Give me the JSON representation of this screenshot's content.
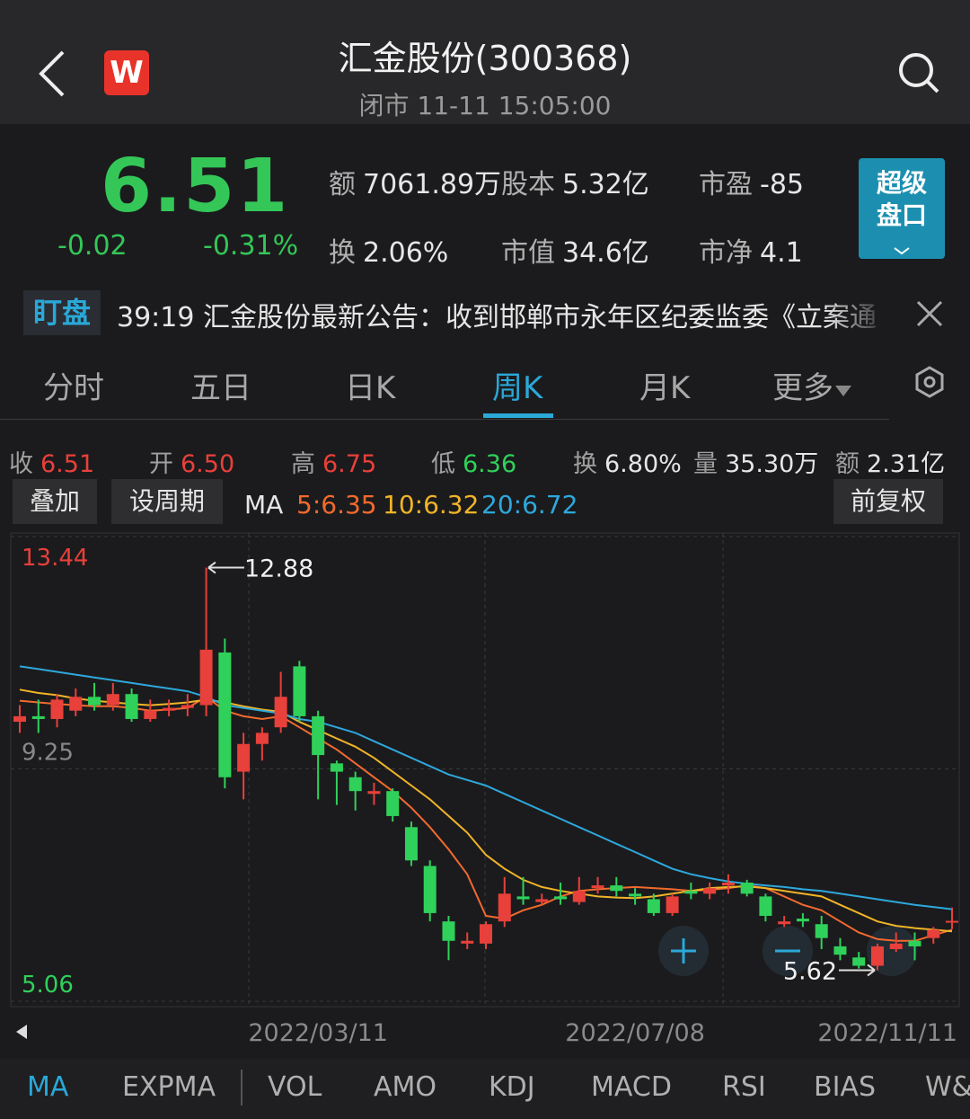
{
  "header": {
    "logo": "W",
    "title": "汇金股份(300368)",
    "subtitle": "闭市 11-11 15:05:00"
  },
  "quote": {
    "price": "6.51",
    "change": "-0.02",
    "change_pct": "-0.31%",
    "stats": [
      {
        "key": "额",
        "value": "7061.89万"
      },
      {
        "key": "股本",
        "value": "5.32亿"
      },
      {
        "key": "市盈",
        "value": "-85"
      },
      {
        "key": "换",
        "value": "2.06%"
      },
      {
        "key": "市值",
        "value": "34.6亿"
      },
      {
        "key": "市净",
        "value": "4.1"
      }
    ],
    "super_button": [
      "超级",
      "盘口"
    ]
  },
  "news": {
    "tag": "盯盘",
    "text": "39:19 汇金股份最新公告：收到邯郸市永年区纪委监委《立案通"
  },
  "period_tabs": [
    "分时",
    "五日",
    "日K",
    "周K",
    "月K",
    "更多"
  ],
  "bar_info": [
    {
      "key": "收",
      "value": "6.51"
    },
    {
      "key": "开",
      "value": "6.50"
    },
    {
      "key": "高",
      "value": "6.75"
    },
    {
      "key": "低",
      "value": "6.36"
    },
    {
      "key": "换",
      "value": "6.80%"
    },
    {
      "key": "量",
      "value": "35.30万"
    },
    {
      "key": "额",
      "value": "2.31亿"
    }
  ],
  "buttons": [
    "叠加",
    "设周期",
    "前复权"
  ],
  "kline": {
    "type": "candlestick",
    "indicator": "MA",
    "ylim": [
      5.06,
      13.44
    ],
    "yticks": [
      5.06,
      9.25,
      13.44
    ],
    "up_color": "#e8403a",
    "down_color": "#2fd15a",
    "categories": [
      null,
      null,
      null,
      null,
      null,
      null,
      null,
      null,
      null,
      null,
      null,
      null,
      null,
      null,
      null,
      null,
      "2022/03/11",
      null,
      null,
      null,
      null,
      null,
      null,
      null,
      null,
      null,
      null,
      null,
      null,
      null,
      null,
      null,
      null,
      "2022/07/08",
      null,
      null,
      null,
      null,
      null,
      null,
      null,
      null,
      null,
      null,
      null,
      null,
      null,
      null,
      null,
      null,
      "2022/11/11"
    ],
    "candles": [
      [
        10.1,
        10.2,
        10.4,
        9.9
      ],
      [
        10.2,
        10.15,
        10.5,
        9.9
      ],
      [
        10.15,
        10.5,
        10.6,
        10.0
      ],
      [
        10.3,
        10.55,
        10.7,
        10.2
      ],
      [
        10.55,
        10.4,
        10.8,
        10.3
      ],
      [
        10.4,
        10.6,
        10.8,
        10.3
      ],
      [
        10.6,
        10.15,
        10.7,
        10.1
      ],
      [
        10.15,
        10.3,
        10.5,
        10.1
      ],
      [
        10.3,
        10.35,
        10.5,
        10.2
      ],
      [
        10.35,
        10.4,
        10.6,
        10.2
      ],
      [
        10.4,
        11.4,
        12.88,
        10.2
      ],
      [
        11.35,
        9.1,
        11.6,
        8.9
      ],
      [
        9.2,
        9.7,
        9.9,
        8.7
      ],
      [
        9.7,
        9.9,
        10.0,
        9.4
      ],
      [
        10.0,
        10.55,
        11.0,
        9.9
      ],
      [
        11.1,
        10.2,
        11.2,
        10.1
      ],
      [
        10.2,
        9.5,
        10.3,
        8.7
      ],
      [
        9.35,
        9.2,
        9.4,
        8.6
      ],
      [
        9.1,
        8.85,
        9.2,
        8.5
      ],
      [
        8.8,
        8.85,
        9.0,
        8.6
      ],
      [
        8.85,
        8.4,
        8.9,
        8.3
      ],
      [
        8.2,
        7.6,
        8.3,
        7.5
      ],
      [
        7.5,
        6.65,
        7.6,
        6.5
      ],
      [
        6.5,
        6.15,
        6.6,
        5.8
      ],
      [
        6.1,
        6.15,
        6.3,
        6.0
      ],
      [
        6.1,
        6.45,
        6.5,
        6.0
      ],
      [
        6.5,
        7.0,
        7.3,
        6.4
      ],
      [
        6.95,
        6.9,
        7.3,
        6.8
      ],
      [
        6.85,
        6.9,
        7.0,
        6.8
      ],
      [
        6.95,
        6.9,
        7.2,
        6.8
      ],
      [
        6.85,
        7.05,
        7.3,
        6.8
      ],
      [
        7.1,
        7.15,
        7.3,
        7.0
      ],
      [
        7.15,
        7.05,
        7.3,
        6.95
      ],
      [
        7.0,
        6.95,
        7.1,
        6.8
      ],
      [
        6.9,
        6.65,
        7.0,
        6.6
      ],
      [
        6.65,
        6.95,
        7.0,
        6.6
      ],
      [
        7.05,
        7.0,
        7.2,
        6.9
      ],
      [
        7.0,
        7.1,
        7.2,
        6.9
      ],
      [
        7.15,
        7.2,
        7.35,
        7.0
      ],
      [
        7.2,
        7.0,
        7.25,
        6.95
      ],
      [
        6.95,
        6.6,
        7.0,
        6.5
      ],
      [
        6.45,
        6.5,
        6.6,
        6.4
      ],
      [
        6.55,
        6.5,
        6.65,
        6.4
      ],
      [
        6.45,
        6.2,
        6.6,
        6.0
      ],
      [
        6.05,
        5.9,
        6.2,
        5.8
      ],
      [
        5.85,
        5.7,
        5.95,
        5.65
      ],
      [
        5.7,
        6.05,
        6.1,
        5.62
      ],
      [
        6.0,
        6.1,
        6.3,
        5.95
      ],
      [
        6.15,
        6.05,
        6.3,
        5.8
      ],
      [
        6.2,
        6.35,
        6.4,
        6.1
      ],
      [
        6.5,
        6.51,
        6.75,
        6.36
      ]
    ],
    "ma": [
      {
        "label": "5:6.35",
        "color": "#f26a2e",
        "values": [
          10.48,
          10.45,
          10.42,
          10.4,
          10.38,
          10.38,
          10.35,
          10.3,
          10.32,
          10.35,
          10.55,
          10.3,
          10.2,
          10.15,
          10.2,
          10.0,
          9.8,
          9.6,
          9.35,
          9.1,
          8.85,
          8.55,
          8.2,
          7.8,
          7.35,
          6.6,
          6.55,
          6.7,
          6.8,
          6.95,
          7.05,
          7.08,
          7.1,
          7.12,
          7.1,
          7.08,
          7.05,
          7.07,
          7.1,
          7.15,
          7.1,
          6.95,
          6.8,
          6.7,
          6.5,
          6.3,
          6.18,
          6.15,
          6.15,
          6.25,
          6.35
        ]
      },
      {
        "label": "10:6.32",
        "color": "#f0b428",
        "values": [
          10.68,
          10.62,
          10.58,
          10.52,
          10.48,
          10.45,
          10.42,
          10.4,
          10.42,
          10.45,
          10.5,
          10.45,
          10.38,
          10.32,
          10.28,
          10.1,
          9.95,
          9.8,
          9.65,
          9.45,
          9.2,
          8.95,
          8.7,
          8.4,
          8.1,
          7.7,
          7.45,
          7.25,
          7.12,
          7.05,
          7.0,
          6.95,
          6.93,
          6.92,
          6.95,
          7.0,
          7.05,
          7.1,
          7.12,
          7.13,
          7.1,
          7.05,
          7.0,
          6.95,
          6.8,
          6.65,
          6.5,
          6.42,
          6.38,
          6.35,
          6.32
        ]
      },
      {
        "label": "20:6.72",
        "color": "#2ea8dc",
        "values": [
          11.1,
          11.05,
          11.0,
          10.95,
          10.9,
          10.85,
          10.8,
          10.75,
          10.7,
          10.65,
          10.55,
          10.4,
          10.35,
          10.3,
          10.25,
          10.15,
          10.1,
          10.0,
          9.9,
          9.75,
          9.6,
          9.45,
          9.3,
          9.15,
          9.05,
          8.95,
          8.8,
          8.65,
          8.5,
          8.35,
          8.2,
          8.05,
          7.9,
          7.75,
          7.6,
          7.45,
          7.35,
          7.28,
          7.22,
          7.18,
          7.15,
          7.12,
          7.08,
          7.05,
          7.0,
          6.95,
          6.9,
          6.85,
          6.8,
          6.76,
          6.72
        ]
      }
    ],
    "annotations": [
      {
        "value": 12.88,
        "label": "12.88"
      },
      {
        "value": 5.62,
        "label": "5.62"
      }
    ]
  },
  "indicator_tabs": [
    "MA",
    "EXPMA",
    "VOL",
    "AMO",
    "KDJ",
    "MACD",
    "RSI",
    "BIAS",
    "W&"
  ]
}
